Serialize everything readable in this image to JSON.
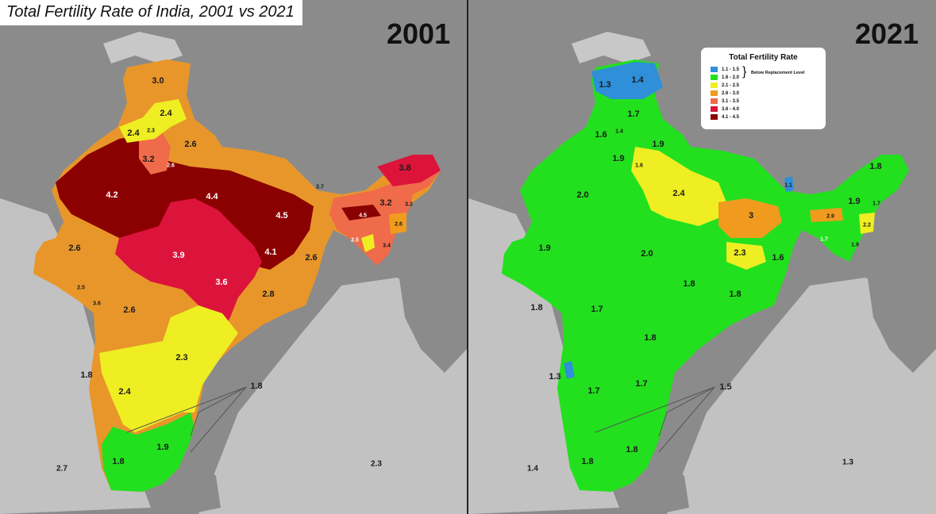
{
  "title": "Total Fertility Rate of India, 2001 vs 2021",
  "colors": {
    "background": "#8f8f8f",
    "sea": "#c2c2c2",
    "land_other": "#8b8b8b",
    "disputed": "#c8c8c8",
    "blue": "#2f8fd8",
    "green": "#22e01e",
    "yellow": "#eeee22",
    "light_orange": "#f09b1e",
    "salmon": "#f06b4a",
    "crimson": "#dc143c",
    "dark_red": "#8b0000"
  },
  "maps": [
    {
      "year": "2001",
      "labels": [
        {
          "text": "3.0",
          "size": 11
        },
        {
          "text": "2.4",
          "size": 11
        },
        {
          "text": "2.4",
          "size": 11
        },
        {
          "text": "2.3",
          "size": 7
        },
        {
          "text": "2.6",
          "size": 11
        },
        {
          "text": "3.2",
          "size": 11
        },
        {
          "text": "2.6",
          "size": 7,
          "white": true
        },
        {
          "text": "4.2",
          "size": 11,
          "white": true
        },
        {
          "text": "4.4",
          "size": 11,
          "white": true
        },
        {
          "text": "4.5",
          "size": 11,
          "white": true
        },
        {
          "text": "3.9",
          "size": 11,
          "white": true
        },
        {
          "text": "4.1",
          "size": 11,
          "white": true
        },
        {
          "text": "3.6",
          "size": 11,
          "white": true
        },
        {
          "text": "2.6",
          "size": 11
        },
        {
          "text": "2.8",
          "size": 11
        },
        {
          "text": "2.6",
          "size": 11
        },
        {
          "text": "2.6",
          "size": 11
        },
        {
          "text": "2.5",
          "size": 7
        },
        {
          "text": "3.6",
          "size": 7
        },
        {
          "text": "2.3",
          "size": 11
        },
        {
          "text": "2.4",
          "size": 11
        },
        {
          "text": "1.8",
          "size": 11
        },
        {
          "text": "1.8",
          "size": 11
        },
        {
          "text": "1.9",
          "size": 11
        },
        {
          "text": "1.8",
          "size": 11
        },
        {
          "text": "2.7",
          "size": 10
        },
        {
          "text": "2.3",
          "size": 10
        },
        {
          "text": "2.7",
          "size": 7
        },
        {
          "text": "3.8",
          "size": 11
        },
        {
          "text": "3.2",
          "size": 11
        },
        {
          "text": "3.2",
          "size": 7
        },
        {
          "text": "4.5",
          "size": 7,
          "white": true
        },
        {
          "text": "2.6",
          "size": 7
        },
        {
          "text": "2.5",
          "size": 7,
          "white": true
        },
        {
          "text": "3.4",
          "size": 7
        }
      ]
    },
    {
      "year": "2021",
      "labels": [
        {
          "text": "1.3",
          "size": 11
        },
        {
          "text": "1.4",
          "size": 11
        },
        {
          "text": "1.7",
          "size": 11
        },
        {
          "text": "1.6",
          "size": 11
        },
        {
          "text": "1.4",
          "size": 7
        },
        {
          "text": "1.9",
          "size": 11
        },
        {
          "text": "1.9",
          "size": 11
        },
        {
          "text": "1.6",
          "size": 7
        },
        {
          "text": "2.0",
          "size": 11
        },
        {
          "text": "2.4",
          "size": 11
        },
        {
          "text": "3",
          "size": 11
        },
        {
          "text": "1.9",
          "size": 11
        },
        {
          "text": "2.0",
          "size": 11
        },
        {
          "text": "2.3",
          "size": 11
        },
        {
          "text": "1.6",
          "size": 11
        },
        {
          "text": "1.8",
          "size": 11
        },
        {
          "text": "1.8",
          "size": 11
        },
        {
          "text": "1.8",
          "size": 11
        },
        {
          "text": "1.7",
          "size": 11
        },
        {
          "text": "1.8",
          "size": 11
        },
        {
          "text": "1.7",
          "size": 11
        },
        {
          "text": "1.7",
          "size": 11
        },
        {
          "text": "1.3",
          "size": 11
        },
        {
          "text": "1.5",
          "size": 11
        },
        {
          "text": "1.8",
          "size": 11
        },
        {
          "text": "1.8",
          "size": 11
        },
        {
          "text": "1.4",
          "size": 10
        },
        {
          "text": "1.3",
          "size": 10
        },
        {
          "text": "1.8",
          "size": 11
        },
        {
          "text": "1.1",
          "size": 7
        },
        {
          "text": "1.9",
          "size": 11
        },
        {
          "text": "1.7",
          "size": 7
        },
        {
          "text": "2.9",
          "size": 7
        },
        {
          "text": "2.2",
          "size": 7
        },
        {
          "text": "1.7",
          "size": 7,
          "white": true
        },
        {
          "text": "1.9",
          "size": 7
        }
      ]
    }
  ],
  "legend": {
    "title": "Total Fertility Rate",
    "note": "Below Replacement Level",
    "items": [
      {
        "range": "1.1 - 1.5",
        "color": "#2f8fd8"
      },
      {
        "range": "1.6 - 2.0",
        "color": "#22e01e"
      },
      {
        "range": "2.1 - 2.5",
        "color": "#eeee22"
      },
      {
        "range": "2.6 - 3.0",
        "color": "#f09b1e"
      },
      {
        "range": "3.1 - 3.5",
        "color": "#f06b4a"
      },
      {
        "range": "3.6 - 4.0",
        "color": "#dc143c"
      },
      {
        "range": "4.1 - 4.5",
        "color": "#8b0000"
      }
    ]
  }
}
